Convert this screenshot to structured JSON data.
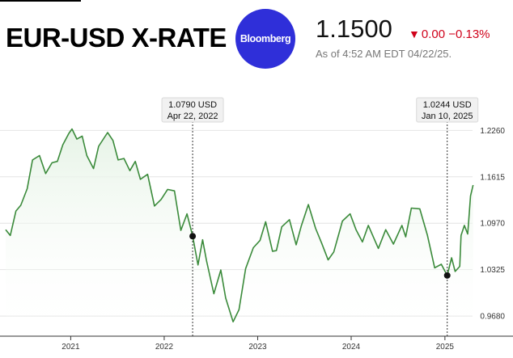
{
  "header": {
    "title": "EUR-USD X-RATE",
    "logo_text": "Bloomberg",
    "price": "1.1500",
    "change_arrow": "▼",
    "change": "0.00 −0.13%",
    "as_of": "As of 4:52 AM EDT 04/22/25."
  },
  "colors": {
    "line": "#3a8a3a",
    "area_top": "#e6f3e6",
    "logo_bg": "#2f2fd9",
    "change": "#d0021b"
  },
  "chart_data": {
    "type": "area",
    "title": "",
    "xlabel": "",
    "ylabel": "",
    "y_ticks": [
      "1.2260",
      "1.1615",
      "1.0970",
      "1.0325",
      "0.9680"
    ],
    "x_ticks": [
      "2021",
      "2022",
      "2023",
      "2024",
      "2025"
    ],
    "xlim": [
      "2020-04-22",
      "2025-04-22"
    ],
    "ylim": [
      0.94,
      1.25
    ],
    "grid": "horizontal",
    "series": [
      {
        "points": [
          [
            "2020-04-22",
            1.088
          ],
          [
            "2020-05-10",
            1.08
          ],
          [
            "2020-06-01",
            1.114
          ],
          [
            "2020-06-20",
            1.122
          ],
          [
            "2020-07-15",
            1.145
          ],
          [
            "2020-08-05",
            1.185
          ],
          [
            "2020-09-01",
            1.191
          ],
          [
            "2020-09-25",
            1.166
          ],
          [
            "2020-10-20",
            1.181
          ],
          [
            "2020-11-10",
            1.183
          ],
          [
            "2020-12-01",
            1.206
          ],
          [
            "2020-12-25",
            1.222
          ],
          [
            "2021-01-06",
            1.228
          ],
          [
            "2021-01-25",
            1.214
          ],
          [
            "2021-02-15",
            1.218
          ],
          [
            "2021-03-05",
            1.191
          ],
          [
            "2021-03-31",
            1.173
          ],
          [
            "2021-04-20",
            1.204
          ],
          [
            "2021-05-25",
            1.223
          ],
          [
            "2021-06-15",
            1.212
          ],
          [
            "2021-07-05",
            1.185
          ],
          [
            "2021-07-28",
            1.187
          ],
          [
            "2021-08-20",
            1.17
          ],
          [
            "2021-09-10",
            1.183
          ],
          [
            "2021-09-30",
            1.158
          ],
          [
            "2021-10-28",
            1.165
          ],
          [
            "2021-11-24",
            1.121
          ],
          [
            "2021-12-20",
            1.13
          ],
          [
            "2022-01-14",
            1.144
          ],
          [
            "2022-02-10",
            1.142
          ],
          [
            "2022-03-07",
            1.087
          ],
          [
            "2022-03-31",
            1.11
          ],
          [
            "2022-04-22",
            1.079
          ],
          [
            "2022-05-13",
            1.039
          ],
          [
            "2022-05-31",
            1.074
          ],
          [
            "2022-06-15",
            1.045
          ],
          [
            "2022-07-14",
            0.999
          ],
          [
            "2022-08-10",
            1.032
          ],
          [
            "2022-08-29",
            0.993
          ],
          [
            "2022-09-27",
            0.96
          ],
          [
            "2022-10-20",
            0.977
          ],
          [
            "2022-11-15",
            1.034
          ],
          [
            "2022-12-15",
            1.063
          ],
          [
            "2023-01-10",
            1.073
          ],
          [
            "2023-02-01",
            1.099
          ],
          [
            "2023-02-28",
            1.058
          ],
          [
            "2023-03-15",
            1.059
          ],
          [
            "2023-04-05",
            1.092
          ],
          [
            "2023-05-05",
            1.102
          ],
          [
            "2023-05-31",
            1.067
          ],
          [
            "2023-06-20",
            1.093
          ],
          [
            "2023-07-18",
            1.123
          ],
          [
            "2023-08-15",
            1.09
          ],
          [
            "2023-09-08",
            1.069
          ],
          [
            "2023-10-03",
            1.046
          ],
          [
            "2023-10-25",
            1.057
          ],
          [
            "2023-11-28",
            1.1
          ],
          [
            "2023-12-28",
            1.11
          ],
          [
            "2024-01-20",
            1.088
          ],
          [
            "2024-02-14",
            1.071
          ],
          [
            "2024-03-08",
            1.094
          ],
          [
            "2024-04-16",
            1.062
          ],
          [
            "2024-05-15",
            1.088
          ],
          [
            "2024-06-14",
            1.068
          ],
          [
            "2024-07-17",
            1.094
          ],
          [
            "2024-08-01",
            1.078
          ],
          [
            "2024-08-23",
            1.118
          ],
          [
            "2024-09-25",
            1.117
          ],
          [
            "2024-10-25",
            1.08
          ],
          [
            "2024-11-22",
            1.035
          ],
          [
            "2024-12-18",
            1.04
          ],
          [
            "2025-01-10",
            1.0244
          ],
          [
            "2025-01-27",
            1.049
          ],
          [
            "2025-02-10",
            1.03
          ],
          [
            "2025-02-28",
            1.037
          ],
          [
            "2025-03-05",
            1.08
          ],
          [
            "2025-03-18",
            1.094
          ],
          [
            "2025-03-31",
            1.082
          ],
          [
            "2025-04-04",
            1.101
          ],
          [
            "2025-04-11",
            1.135
          ],
          [
            "2025-04-21",
            1.15
          ]
        ]
      }
    ],
    "annotations": [
      {
        "date": "2022-04-22",
        "value": 1.079,
        "label_value": "1.0790 USD",
        "label_date": "Apr 22, 2022"
      },
      {
        "date": "2025-01-10",
        "value": 1.0244,
        "label_value": "1.0244 USD",
        "label_date": "Jan 10, 2025"
      }
    ]
  }
}
